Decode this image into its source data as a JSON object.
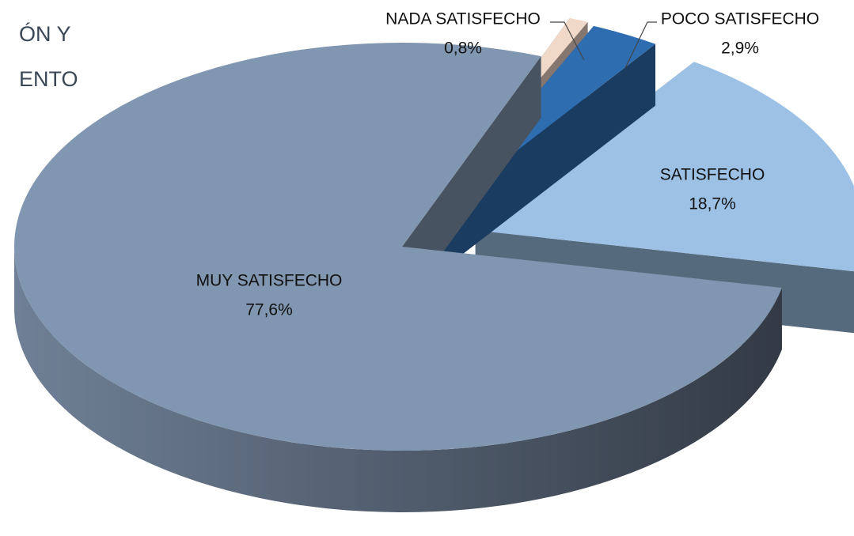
{
  "chart_data": {
    "type": "pie",
    "title_lines": [
      "ÓN Y",
      "ENTO"
    ],
    "categories": [
      "NADA SATISFECHO",
      "POCO SATISFECHO",
      "SATISFECHO",
      "MUY SATISFECHO"
    ],
    "values": [
      0.8,
      2.9,
      18.7,
      77.6
    ],
    "value_labels": [
      "0,8%",
      "2,9%",
      "18,7%",
      "77,6%"
    ],
    "colors": [
      "#f1d9c9",
      "#2f6db1",
      "#9dc1e5",
      "#8196b0"
    ]
  }
}
